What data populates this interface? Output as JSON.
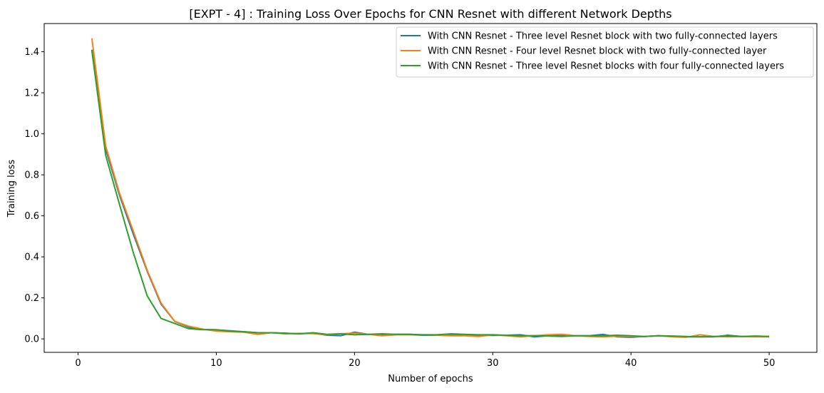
{
  "chart_data": {
    "type": "line",
    "title": "[EXPT - 4] : Training Loss Over Epochs for CNN Resnet with different Network Depths",
    "xlabel": "Number of epochs",
    "ylabel": "Training loss",
    "xlim": [
      -2.45,
      53.45
    ],
    "ylim": [
      -0.0655,
      1.5375
    ],
    "xticks": [
      0,
      10,
      20,
      30,
      40,
      50
    ],
    "xtick_labels": [
      "0",
      "10",
      "20",
      "30",
      "40",
      "50"
    ],
    "yticks": [
      0.0,
      0.2,
      0.4,
      0.6,
      0.8,
      1.0,
      1.2,
      1.4
    ],
    "ytick_labels": [
      "0.0",
      "0.2",
      "0.4",
      "0.6",
      "0.8",
      "1.0",
      "1.2",
      "1.4"
    ],
    "grid": false,
    "legend_position": "upper right",
    "x": [
      1,
      2,
      3,
      4,
      5,
      6,
      7,
      8,
      9,
      10,
      11,
      12,
      13,
      14,
      15,
      16,
      17,
      18,
      19,
      20,
      21,
      22,
      23,
      24,
      25,
      26,
      27,
      28,
      29,
      30,
      31,
      32,
      33,
      34,
      35,
      36,
      37,
      38,
      39,
      40,
      41,
      42,
      43,
      44,
      45,
      46,
      47,
      48,
      49,
      50
    ],
    "series": [
      {
        "name": "With CNN Resnet - Three level Resnet block with two fully-connected layers",
        "color": "#1f77b4",
        "values": [
          1.41,
          0.925,
          0.7,
          0.51,
          0.33,
          0.17,
          0.085,
          0.058,
          0.046,
          0.044,
          0.04,
          0.035,
          0.03,
          0.03,
          0.028,
          0.025,
          0.028,
          0.018,
          0.016,
          0.033,
          0.022,
          0.018,
          0.022,
          0.022,
          0.02,
          0.02,
          0.022,
          0.02,
          0.018,
          0.017,
          0.018,
          0.02,
          0.01,
          0.015,
          0.016,
          0.015,
          0.015,
          0.022,
          0.01,
          0.008,
          0.012,
          0.015,
          0.012,
          0.01,
          0.01,
          0.01,
          0.018,
          0.012,
          0.012,
          0.012
        ]
      },
      {
        "name": "With CNN Resnet - Four level Resnet block with two fully-connected layer",
        "color": "#ff7f0e",
        "values": [
          1.465,
          0.94,
          0.71,
          0.525,
          0.335,
          0.175,
          0.085,
          0.062,
          0.048,
          0.038,
          0.035,
          0.033,
          0.022,
          0.03,
          0.025,
          0.027,
          0.026,
          0.02,
          0.025,
          0.028,
          0.022,
          0.015,
          0.02,
          0.02,
          0.018,
          0.018,
          0.015,
          0.015,
          0.012,
          0.02,
          0.015,
          0.01,
          0.015,
          0.02,
          0.022,
          0.015,
          0.012,
          0.01,
          0.013,
          0.012,
          0.012,
          0.016,
          0.01,
          0.008,
          0.02,
          0.012,
          0.01,
          0.012,
          0.01,
          0.01
        ]
      },
      {
        "name": "With CNN Resnet - Three level Resnet blocks with four fully-connected layers",
        "color": "#2ca02c",
        "values": [
          1.405,
          0.895,
          0.655,
          0.42,
          0.21,
          0.1,
          0.075,
          0.05,
          0.045,
          0.045,
          0.038,
          0.035,
          0.03,
          0.03,
          0.027,
          0.025,
          0.03,
          0.022,
          0.025,
          0.02,
          0.022,
          0.025,
          0.022,
          0.022,
          0.018,
          0.02,
          0.025,
          0.022,
          0.02,
          0.02,
          0.018,
          0.016,
          0.016,
          0.014,
          0.012,
          0.015,
          0.015,
          0.015,
          0.018,
          0.015,
          0.012,
          0.015,
          0.014,
          0.012,
          0.01,
          0.012,
          0.014,
          0.012,
          0.014,
          0.012
        ]
      }
    ]
  }
}
